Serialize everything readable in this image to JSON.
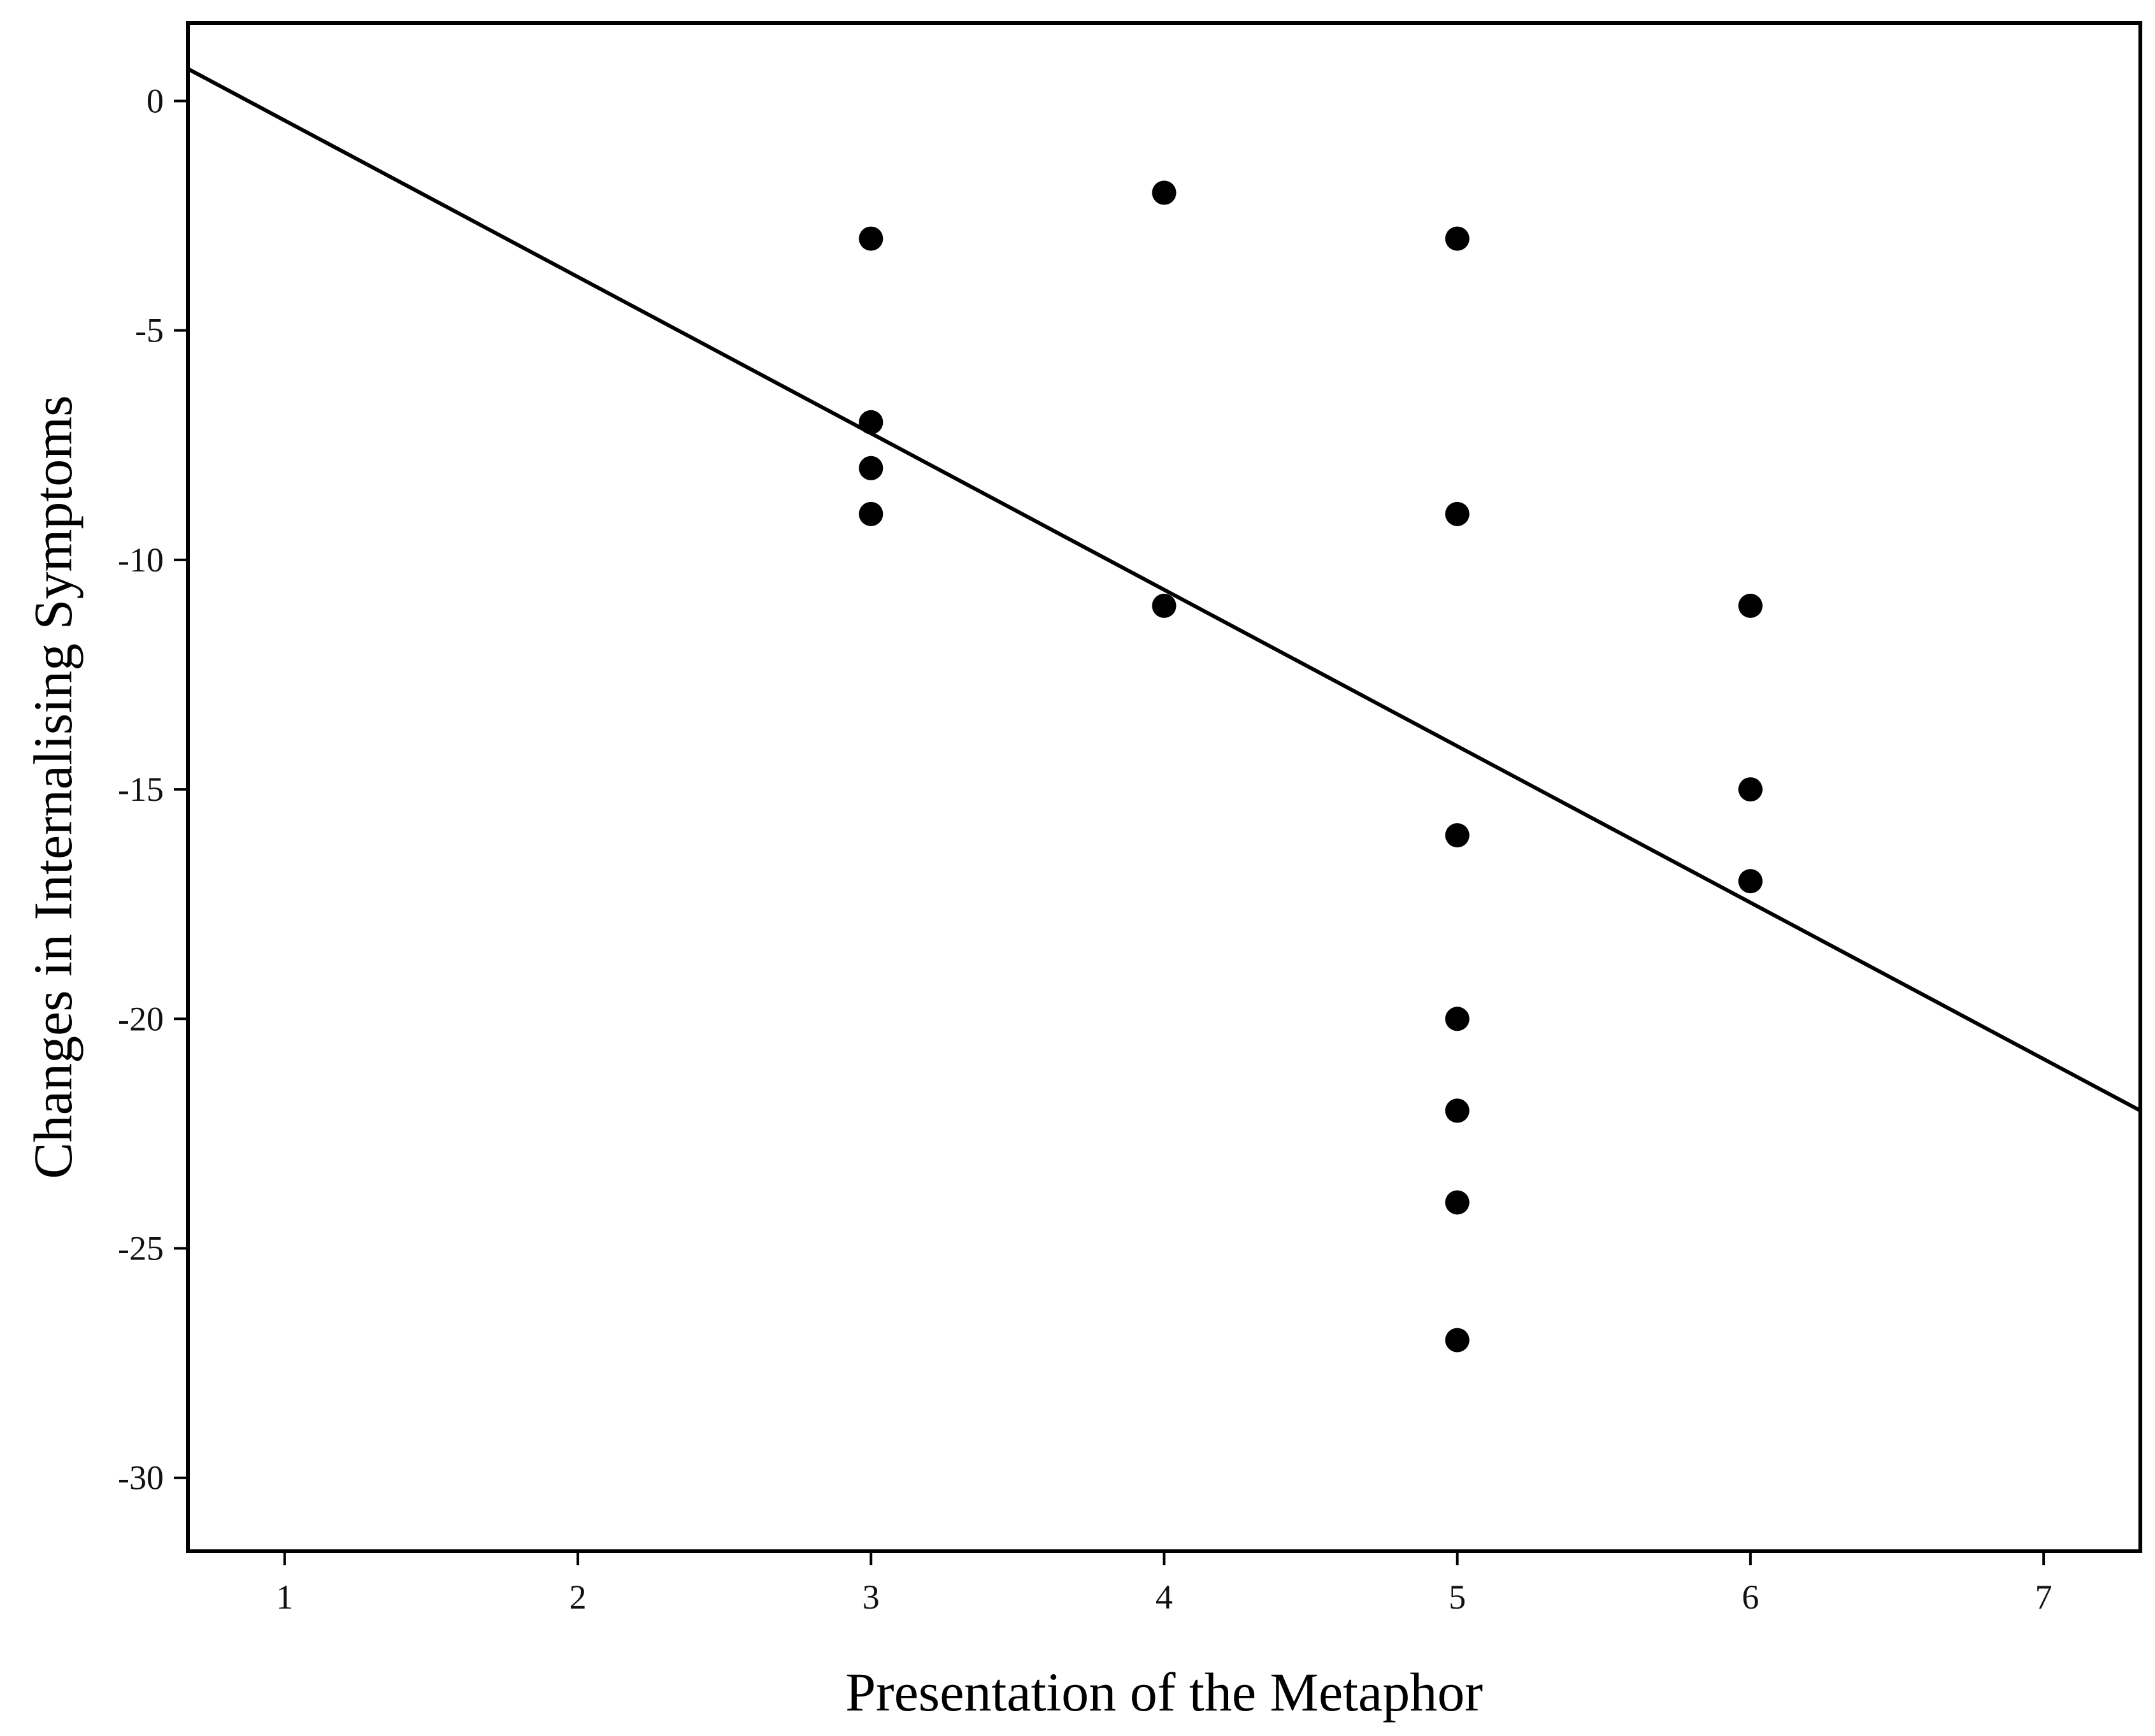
{
  "chart_data": {
    "type": "scatter",
    "title": "",
    "xlabel": "Presentation of the Metaphor",
    "ylabel": "Changes in Internalising Symptoms",
    "xlim": [
      0.67,
      7.33
    ],
    "ylim": [
      -31.6,
      1.7
    ],
    "xticks": [
      1,
      2,
      3,
      4,
      5,
      6,
      7
    ],
    "yticks": [
      0,
      -5,
      -10,
      -15,
      -20,
      -25,
      -30
    ],
    "grid": false,
    "legend": "none",
    "colors": {
      "points": "#000000",
      "line": "#000000",
      "frame": "#000000"
    },
    "points": [
      {
        "x": 3,
        "y": -3
      },
      {
        "x": 3,
        "y": -7
      },
      {
        "x": 3,
        "y": -8
      },
      {
        "x": 3,
        "y": -9
      },
      {
        "x": 4,
        "y": -2
      },
      {
        "x": 4,
        "y": -11
      },
      {
        "x": 5,
        "y": -3
      },
      {
        "x": 5,
        "y": -9
      },
      {
        "x": 5,
        "y": -16
      },
      {
        "x": 5,
        "y": -20
      },
      {
        "x": 5,
        "y": -22
      },
      {
        "x": 5,
        "y": -24
      },
      {
        "x": 5,
        "y": -27
      },
      {
        "x": 6,
        "y": -11
      },
      {
        "x": 6,
        "y": -15
      },
      {
        "x": 6,
        "y": -17
      }
    ],
    "fit_line": {
      "x": [
        0.67,
        7.33
      ],
      "y": [
        0.7,
        -22.0
      ]
    }
  }
}
